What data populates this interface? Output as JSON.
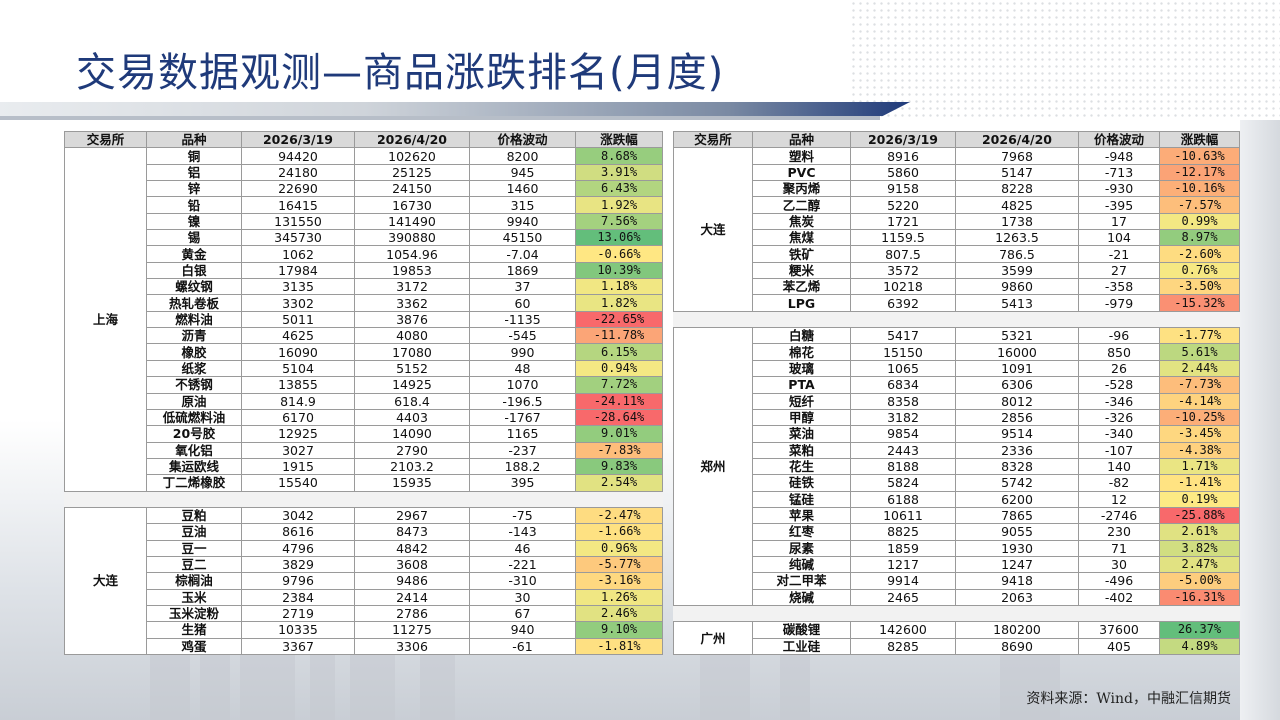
{
  "title": "交易数据观测—商品涨跌排名(月度)",
  "source": "资料来源：Wind，中融汇信期货",
  "headers": [
    "交易所",
    "品种",
    "2026/3/19",
    "2026/4/20",
    "价格波动",
    "涨跌幅"
  ],
  "left_groups": [
    {
      "exchange": "上海",
      "rows": [
        [
          "铜",
          "94420",
          "102620",
          "8200",
          "8.68%"
        ],
        [
          "铝",
          "24180",
          "25125",
          "945",
          "3.91%"
        ],
        [
          "锌",
          "22690",
          "24150",
          "1460",
          "6.43%"
        ],
        [
          "铅",
          "16415",
          "16730",
          "315",
          "1.92%"
        ],
        [
          "镍",
          "131550",
          "141490",
          "9940",
          "7.56%"
        ],
        [
          "锡",
          "345730",
          "390880",
          "45150",
          "13.06%"
        ],
        [
          "黄金",
          "1062",
          "1054.96",
          "-7.04",
          "-0.66%"
        ],
        [
          "白银",
          "17984",
          "19853",
          "1869",
          "10.39%"
        ],
        [
          "螺纹钢",
          "3135",
          "3172",
          "37",
          "1.18%"
        ],
        [
          "热轧卷板",
          "3302",
          "3362",
          "60",
          "1.82%"
        ],
        [
          "燃料油",
          "5011",
          "3876",
          "-1135",
          "-22.65%"
        ],
        [
          "沥青",
          "4625",
          "4080",
          "-545",
          "-11.78%"
        ],
        [
          "橡胶",
          "16090",
          "17080",
          "990",
          "6.15%"
        ],
        [
          "纸浆",
          "5104",
          "5152",
          "48",
          "0.94%"
        ],
        [
          "不锈钢",
          "13855",
          "14925",
          "1070",
          "7.72%"
        ],
        [
          "原油",
          "814.9",
          "618.4",
          "-196.5",
          "-24.11%"
        ],
        [
          "低硫燃料油",
          "6170",
          "4403",
          "-1767",
          "-28.64%"
        ],
        [
          "20号胶",
          "12925",
          "14090",
          "1165",
          "9.01%"
        ],
        [
          "氧化铝",
          "3027",
          "2790",
          "-237",
          "-7.83%"
        ],
        [
          "集运欧线",
          "1915",
          "2103.2",
          "188.2",
          "9.83%"
        ],
        [
          "丁二烯橡胶",
          "15540",
          "15935",
          "395",
          "2.54%"
        ]
      ]
    },
    {
      "exchange": "大连",
      "rows": [
        [
          "豆粕",
          "3042",
          "2967",
          "-75",
          "-2.47%"
        ],
        [
          "豆油",
          "8616",
          "8473",
          "-143",
          "-1.66%"
        ],
        [
          "豆一",
          "4796",
          "4842",
          "46",
          "0.96%"
        ],
        [
          "豆二",
          "3829",
          "3608",
          "-221",
          "-5.77%"
        ],
        [
          "棕榈油",
          "9796",
          "9486",
          "-310",
          "-3.16%"
        ],
        [
          "玉米",
          "2384",
          "2414",
          "30",
          "1.26%"
        ],
        [
          "玉米淀粉",
          "2719",
          "2786",
          "67",
          "2.46%"
        ],
        [
          "生猪",
          "10335",
          "11275",
          "940",
          "9.10%"
        ],
        [
          "鸡蛋",
          "3367",
          "3306",
          "-61",
          "-1.81%"
        ]
      ]
    }
  ],
  "right_groups": [
    {
      "exchange": "大连",
      "rows": [
        [
          "塑料",
          "8916",
          "7968",
          "-948",
          "-10.63%"
        ],
        [
          "PVC",
          "5860",
          "5147",
          "-713",
          "-12.17%"
        ],
        [
          "聚丙烯",
          "9158",
          "8228",
          "-930",
          "-10.16%"
        ],
        [
          "乙二醇",
          "5220",
          "4825",
          "-395",
          "-7.57%"
        ],
        [
          "焦炭",
          "1721",
          "1738",
          "17",
          "0.99%"
        ],
        [
          "焦煤",
          "1159.5",
          "1263.5",
          "104",
          "8.97%"
        ],
        [
          "铁矿",
          "807.5",
          "786.5",
          "-21",
          "-2.60%"
        ],
        [
          "粳米",
          "3572",
          "3599",
          "27",
          "0.76%"
        ],
        [
          "苯乙烯",
          "10218",
          "9860",
          "-358",
          "-3.50%"
        ],
        [
          "LPG",
          "6392",
          "5413",
          "-979",
          "-15.32%"
        ]
      ]
    },
    {
      "exchange": "郑州",
      "rows": [
        [
          "白糖",
          "5417",
          "5321",
          "-96",
          "-1.77%"
        ],
        [
          "棉花",
          "15150",
          "16000",
          "850",
          "5.61%"
        ],
        [
          "玻璃",
          "1065",
          "1091",
          "26",
          "2.44%"
        ],
        [
          "PTA",
          "6834",
          "6306",
          "-528",
          "-7.73%"
        ],
        [
          "短纤",
          "8358",
          "8012",
          "-346",
          "-4.14%"
        ],
        [
          "甲醇",
          "3182",
          "2856",
          "-326",
          "-10.25%"
        ],
        [
          "菜油",
          "9854",
          "9514",
          "-340",
          "-3.45%"
        ],
        [
          "菜粕",
          "2443",
          "2336",
          "-107",
          "-4.38%"
        ],
        [
          "花生",
          "8188",
          "8328",
          "140",
          "1.71%"
        ],
        [
          "硅铁",
          "5824",
          "5742",
          "-82",
          "-1.41%"
        ],
        [
          "锰硅",
          "6188",
          "6200",
          "12",
          "0.19%"
        ],
        [
          "苹果",
          "10611",
          "7865",
          "-2746",
          "-25.88%"
        ],
        [
          "红枣",
          "8825",
          "9055",
          "230",
          "2.61%"
        ],
        [
          "尿素",
          "1859",
          "1930",
          "71",
          "3.82%"
        ],
        [
          "纯碱",
          "1217",
          "1247",
          "30",
          "2.47%"
        ],
        [
          "对二甲苯",
          "9914",
          "9418",
          "-496",
          "-5.00%"
        ],
        [
          "烧碱",
          "2465",
          "2063",
          "-402",
          "-16.31%"
        ]
      ]
    },
    {
      "exchange": "广州",
      "rows": [
        [
          "碳酸锂",
          "142600",
          "180200",
          "37600",
          "26.37%"
        ],
        [
          "工业硅",
          "8285",
          "8690",
          "405",
          "4.89%"
        ]
      ]
    }
  ],
  "heat_colors": {
    "strong_up": "#63be7b",
    "mid": "#ffeb84",
    "strong_down": "#f8696b"
  }
}
